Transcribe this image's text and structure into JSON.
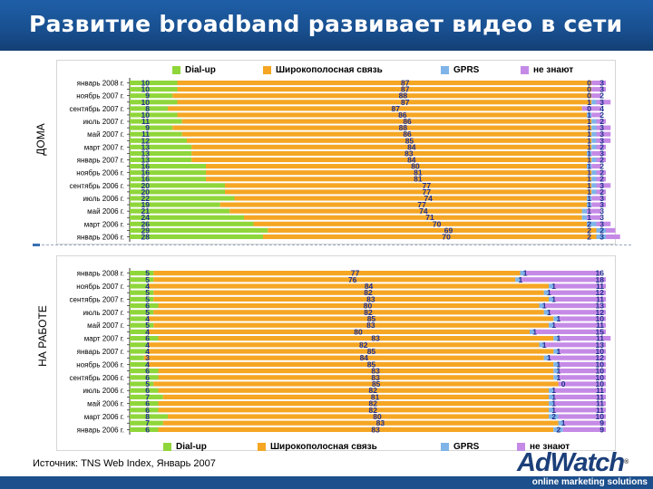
{
  "title": "Развитие broadband развивает видео в сети",
  "source": "Источник: TNS Web Index, Январь 2007",
  "brand": {
    "name": "AdWatch",
    "mark": "®",
    "tagline": "online marketing solutions"
  },
  "colors": {
    "dialup": "#8fd63a",
    "broadband": "#f5a623",
    "gprs": "#7fb4e8",
    "unknown": "#c58ae6",
    "title_bar": "#1a5597",
    "label": "#1f2f8f"
  },
  "chart_data": [
    {
      "type": "bar",
      "stacked": "horizontal-100%",
      "title": "ДОМА",
      "legend": [
        "Dial-up",
        "Широкополосная связь",
        "GPRS",
        "не знают"
      ],
      "categories": [
        "январь 2008 г.",
        "декабрь 2007 г.",
        "ноябрь 2007 г.",
        "октябрь 2007 г.",
        "сентябрь 2007 г.",
        "август 2007 г.",
        "июль 2007 г.",
        "июнь 2007 г.",
        "май 2007 г.",
        "апрель 2007 г.",
        "март 2007 г.",
        "февраль 2007 г.",
        "январь 2007 г.",
        "декабрь 2006 г.",
        "ноябрь 2006 г.",
        "октябрь 2006 г.",
        "сентябрь 2006 г.",
        "август 2006 г.",
        "июль 2006 г.",
        "июнь 2006 г.",
        "май 2006 г.",
        "апрель 2006 г.",
        "март 2006 г.",
        "февраль 2006 г.",
        "январь 2006 г."
      ],
      "axis_labels": [
        "январь 2008 г.",
        "ноябрь 2007 г.",
        "сентябрь 2007 г.",
        "июль 2007 г.",
        "май 2007 г.",
        "март 2007 г.",
        "январь 2007 г.",
        "ноябрь 2006 г.",
        "сентябрь 2006 г.",
        "июль 2006 г.",
        "май 2006 г.",
        "март 2006 г.",
        "январь 2006 г."
      ],
      "series": [
        {
          "name": "Dial-up",
          "values": [
            10,
            10,
            9,
            10,
            8,
            10,
            11,
            9,
            11,
            12,
            13,
            13,
            13,
            16,
            16,
            16,
            20,
            20,
            22,
            19,
            21,
            24,
            26,
            29,
            28
          ]
        },
        {
          "name": "Широкополосная связь",
          "values": [
            87,
            87,
            88,
            87,
            87,
            86,
            86,
            88,
            86,
            85,
            84,
            83,
            84,
            80,
            81,
            81,
            77,
            77,
            74,
            77,
            74,
            71,
            70,
            69,
            70
          ]
        },
        {
          "name": "GPRS",
          "values": [
            0,
            0,
            0,
            1,
            0,
            1,
            1,
            1,
            1,
            1,
            1,
            1,
            1,
            1,
            1,
            1,
            1,
            1,
            1,
            1,
            1,
            1,
            2,
            2,
            2
          ]
        },
        {
          "name": "не знают",
          "values": [
            3,
            3,
            2,
            3,
            4,
            2,
            2,
            3,
            3,
            3,
            2,
            3,
            2,
            2,
            2,
            2,
            3,
            2,
            3,
            3,
            3,
            3,
            3,
            2,
            3
          ]
        }
      ],
      "xlim": [
        0,
        100
      ]
    },
    {
      "type": "bar",
      "stacked": "horizontal-100%",
      "title": "НА РАБОТЕ",
      "legend": [
        "Dial-up",
        "Широкополосная связь",
        "GPRS",
        "не знают"
      ],
      "categories": [
        "январь 2008 г.",
        "декабрь 2007 г.",
        "ноябрь 2007 г.",
        "октябрь 2007 г.",
        "сентябрь 2007 г.",
        "август 2007 г.",
        "июль 2007 г.",
        "июнь 2007 г.",
        "май 2007 г.",
        "апрель 2007 г.",
        "март 2007 г.",
        "февраль 2007 г.",
        "январь 2007 г.",
        "декабрь 2006 г.",
        "ноябрь 2006 г.",
        "октябрь 2006 г.",
        "сентябрь 2006 г.",
        "август 2006 г.",
        "июль 2006 г.",
        "июнь 2006 г.",
        "май 2006 г.",
        "апрель 2006 г.",
        "март 2006 г.",
        "февраль 2006 г.",
        "январь 2006 г."
      ],
      "axis_labels": [
        "январь 2008 г.",
        "ноябрь 2007 г.",
        "сентябрь 2007 г.",
        "июль 2007 г.",
        "май 2007 г.",
        "март 2007 г.",
        "январь 2007 г.",
        "ноябрь 2006 г.",
        "сентябрь 2006 г.",
        "июль 2006 г.",
        "май 2006 г.",
        "март 2006 г.",
        "январь 2006 г."
      ],
      "series": [
        {
          "name": "Dial-up",
          "values": [
            5,
            5,
            4,
            5,
            5,
            6,
            5,
            4,
            5,
            4,
            6,
            4,
            4,
            3,
            4,
            6,
            6,
            5,
            6,
            7,
            6,
            6,
            8,
            7,
            6
          ]
        },
        {
          "name": "Широкополосная связь",
          "values": [
            77,
            76,
            84,
            82,
            83,
            80,
            82,
            85,
            83,
            80,
            83,
            82,
            85,
            84,
            85,
            83,
            83,
            85,
            82,
            81,
            82,
            82,
            80,
            83,
            83
          ]
        },
        {
          "name": "GPRS",
          "values": [
            1,
            1,
            1,
            1,
            1,
            1,
            1,
            1,
            1,
            1,
            1,
            1,
            1,
            1,
            1,
            1,
            1,
            0,
            1,
            1,
            1,
            1,
            2,
            1,
            2
          ]
        },
        {
          "name": "не знают",
          "values": [
            16,
            18,
            11,
            12,
            11,
            13,
            12,
            10,
            11,
            15,
            11,
            13,
            10,
            12,
            10,
            10,
            10,
            10,
            11,
            11,
            11,
            11,
            10,
            9,
            9
          ]
        }
      ],
      "xlim": [
        0,
        100
      ]
    }
  ]
}
